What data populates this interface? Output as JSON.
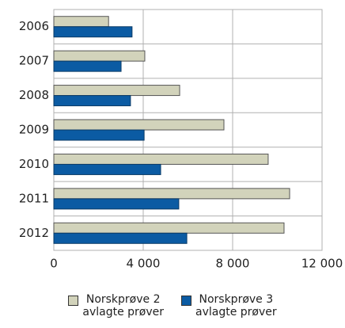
{
  "chart_data": {
    "type": "hbar",
    "categories": [
      "2006",
      "2007",
      "2008",
      "2009",
      "2010",
      "2011",
      "2012"
    ],
    "series": [
      {
        "name": "Norskprøve 2\navlagte prøver",
        "color": "#d2d3bb",
        "values": [
          2450,
          4070,
          5630,
          7610,
          9590,
          10550,
          10300
        ]
      },
      {
        "name": "Norskprøve 3\navlagte prøver",
        "color": "#0b5ba3",
        "values": [
          3500,
          3010,
          3430,
          4040,
          4780,
          5590,
          5950
        ]
      }
    ],
    "xlim": [
      0,
      12000
    ],
    "xticks": [
      0,
      {
        "value": 4000,
        "label": "4 000"
      },
      {
        "value": 8000,
        "label": "8 000"
      },
      {
        "value": 12000,
        "label": "12 000"
      }
    ],
    "grid": true,
    "legend": "bottom"
  }
}
